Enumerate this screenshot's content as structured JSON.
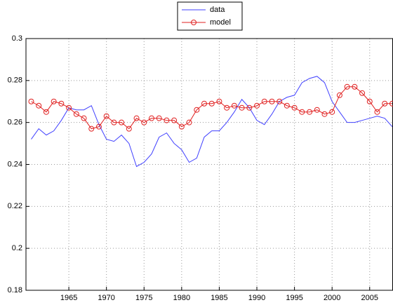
{
  "chart_data": {
    "type": "line",
    "x": [
      1960,
      1961,
      1962,
      1963,
      1964,
      1965,
      1966,
      1967,
      1968,
      1969,
      1970,
      1971,
      1972,
      1973,
      1974,
      1975,
      1976,
      1977,
      1978,
      1979,
      1980,
      1981,
      1982,
      1983,
      1984,
      1985,
      1986,
      1987,
      1988,
      1989,
      1990,
      1991,
      1992,
      1993,
      1994,
      1995,
      1996,
      1997,
      1998,
      1999,
      2000,
      2001,
      2002,
      2003,
      2004,
      2005,
      2006,
      2007,
      2008
    ],
    "series": [
      {
        "name": "data",
        "color": "#4040ff",
        "marker": "none",
        "values": [
          0.252,
          0.257,
          0.254,
          0.256,
          0.261,
          0.267,
          0.266,
          0.266,
          0.268,
          0.259,
          0.252,
          0.251,
          0.254,
          0.25,
          0.239,
          0.241,
          0.245,
          0.253,
          0.255,
          0.25,
          0.247,
          0.241,
          0.243,
          0.253,
          0.256,
          0.256,
          0.26,
          0.265,
          0.271,
          0.267,
          0.261,
          0.259,
          0.264,
          0.27,
          0.272,
          0.273,
          0.279,
          0.281,
          0.282,
          0.279,
          0.27,
          0.265,
          0.26,
          0.26,
          0.261,
          0.262,
          0.263,
          0.262,
          0.258
        ]
      },
      {
        "name": "model",
        "color": "#e02020",
        "marker": "o",
        "values": [
          0.27,
          0.268,
          0.265,
          0.27,
          0.269,
          0.267,
          0.264,
          0.262,
          0.257,
          0.258,
          0.263,
          0.26,
          0.26,
          0.257,
          0.262,
          0.26,
          0.262,
          0.262,
          0.261,
          0.261,
          0.258,
          0.26,
          0.266,
          0.269,
          0.269,
          0.27,
          0.267,
          0.268,
          0.267,
          0.267,
          0.268,
          0.27,
          0.27,
          0.27,
          0.268,
          0.267,
          0.265,
          0.265,
          0.266,
          0.264,
          0.265,
          0.273,
          0.277,
          0.277,
          0.274,
          0.27,
          0.265,
          0.269,
          0.269
        ]
      }
    ],
    "xlim": [
      1959.3,
      2008.1
    ],
    "xticks": [
      1965,
      1970,
      1975,
      1980,
      1985,
      1990,
      1995,
      2000,
      2005
    ],
    "ylim": [
      0.18,
      0.3
    ],
    "yticks": [
      0.18,
      0.2,
      0.22,
      0.24,
      0.26,
      0.28,
      0.3
    ],
    "grid": true,
    "legend": "top"
  }
}
